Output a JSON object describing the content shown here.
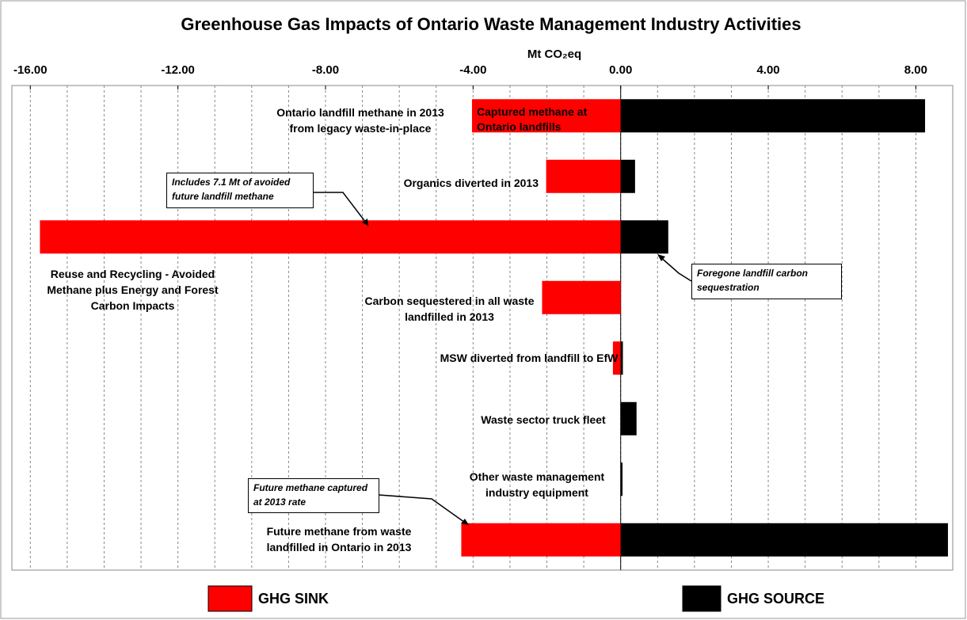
{
  "chart_data": {
    "type": "diverging_bar",
    "title": "Greenhouse Gas Impacts of Ontario Waste Management  Industry Activities",
    "x_label": "Mt CO₂eq",
    "categories": [
      "Ontario landfill methane in 2013 from legacy waste-in-place",
      "Organics diverted in 2013",
      "Reuse and Recycling - Avoided Methane plus Energy and Forest Carbon Impacts",
      "Carbon sequestered in all waste landfilled in 2013",
      "MSW diverted from landfill to EfW",
      "Waste sector truck fleet",
      "Other waste management industry equipment",
      "Future methane from waste landfilled in Ontario  in 2013"
    ],
    "series": [
      {
        "name": "GHG SINK",
        "color": "#ff0000",
        "values": [
          -4.03,
          -2.02,
          -15.74,
          -2.13,
          -0.21,
          0,
          0,
          -4.32
        ]
      },
      {
        "name": "GHG SOURCE",
        "color": "#000000",
        "values": [
          8.25,
          0.39,
          1.29,
          0,
          0.06,
          0.43,
          0.05,
          8.87
        ]
      }
    ],
    "annotations": [
      "Captured methane at Ontario landfills",
      "Includes 7.1 Mt of avoided future landfill methane",
      "Foregone  landfill carbon sequestration",
      "Future methane captured at 2013 rate"
    ],
    "xlim": [
      -16.5,
      9
    ],
    "xticks": [
      {
        "value": -16,
        "label": "-16.00"
      },
      {
        "value": -12,
        "label": "-12.00"
      },
      {
        "value": -8,
        "label": "-8.00"
      },
      {
        "value": -4,
        "label": "-4.00"
      },
      {
        "value": 0,
        "label": "0.00"
      },
      {
        "value": 4,
        "label": "4.00"
      },
      {
        "value": 8,
        "label": "8.00"
      }
    ],
    "minor_xticks": [
      -16,
      -15,
      -14,
      -13,
      -12,
      -11,
      -10,
      -9,
      -8,
      -7,
      -6,
      -5,
      -4,
      -3,
      -2,
      -1,
      0,
      1,
      2,
      3,
      4,
      5,
      6,
      7,
      8
    ],
    "grid": true
  }
}
